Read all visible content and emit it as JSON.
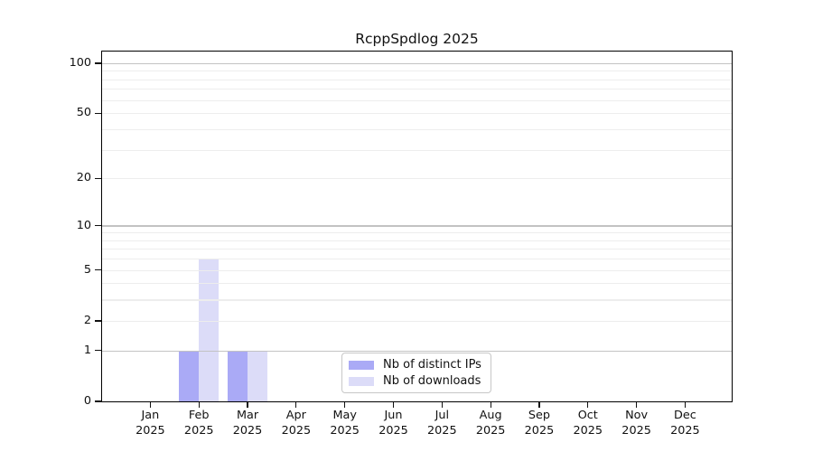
{
  "chart_data": {
    "type": "bar",
    "title": "RcppSpdlog 2025",
    "categories": [
      "Jan",
      "Feb",
      "Mar",
      "Apr",
      "May",
      "Jun",
      "Jul",
      "Aug",
      "Sep",
      "Oct",
      "Nov",
      "Dec"
    ],
    "category_year": "2025",
    "series": [
      {
        "name": "Nb of distinct IPs",
        "color": "#aaaaf6",
        "values": [
          0,
          1,
          1,
          0,
          0,
          0,
          0,
          0,
          0,
          0,
          0,
          0
        ]
      },
      {
        "name": "Nb of downloads",
        "color": "#dcdcf8",
        "values": [
          0,
          6,
          1,
          0,
          0,
          0,
          0,
          0,
          0,
          0,
          0,
          0
        ]
      }
    ],
    "y_axis": {
      "scale": "log1p",
      "tick_values": [
        0,
        1,
        2,
        5,
        10,
        20,
        50,
        100
      ],
      "major_gridlines": [
        1,
        10,
        100
      ],
      "minor_gridlines": [
        2,
        3,
        4,
        5,
        6,
        7,
        8,
        9,
        20,
        30,
        40,
        50,
        60,
        70,
        80,
        90
      ],
      "top_value": 117
    },
    "grid": {
      "horizontal": true,
      "vertical": false
    },
    "legend": {
      "position": "inside-bottom-center"
    },
    "colors": {
      "frame": "#000000",
      "major_grid": "#c3c3c3",
      "minor_grid": "#ededed",
      "text": "#111111"
    }
  }
}
